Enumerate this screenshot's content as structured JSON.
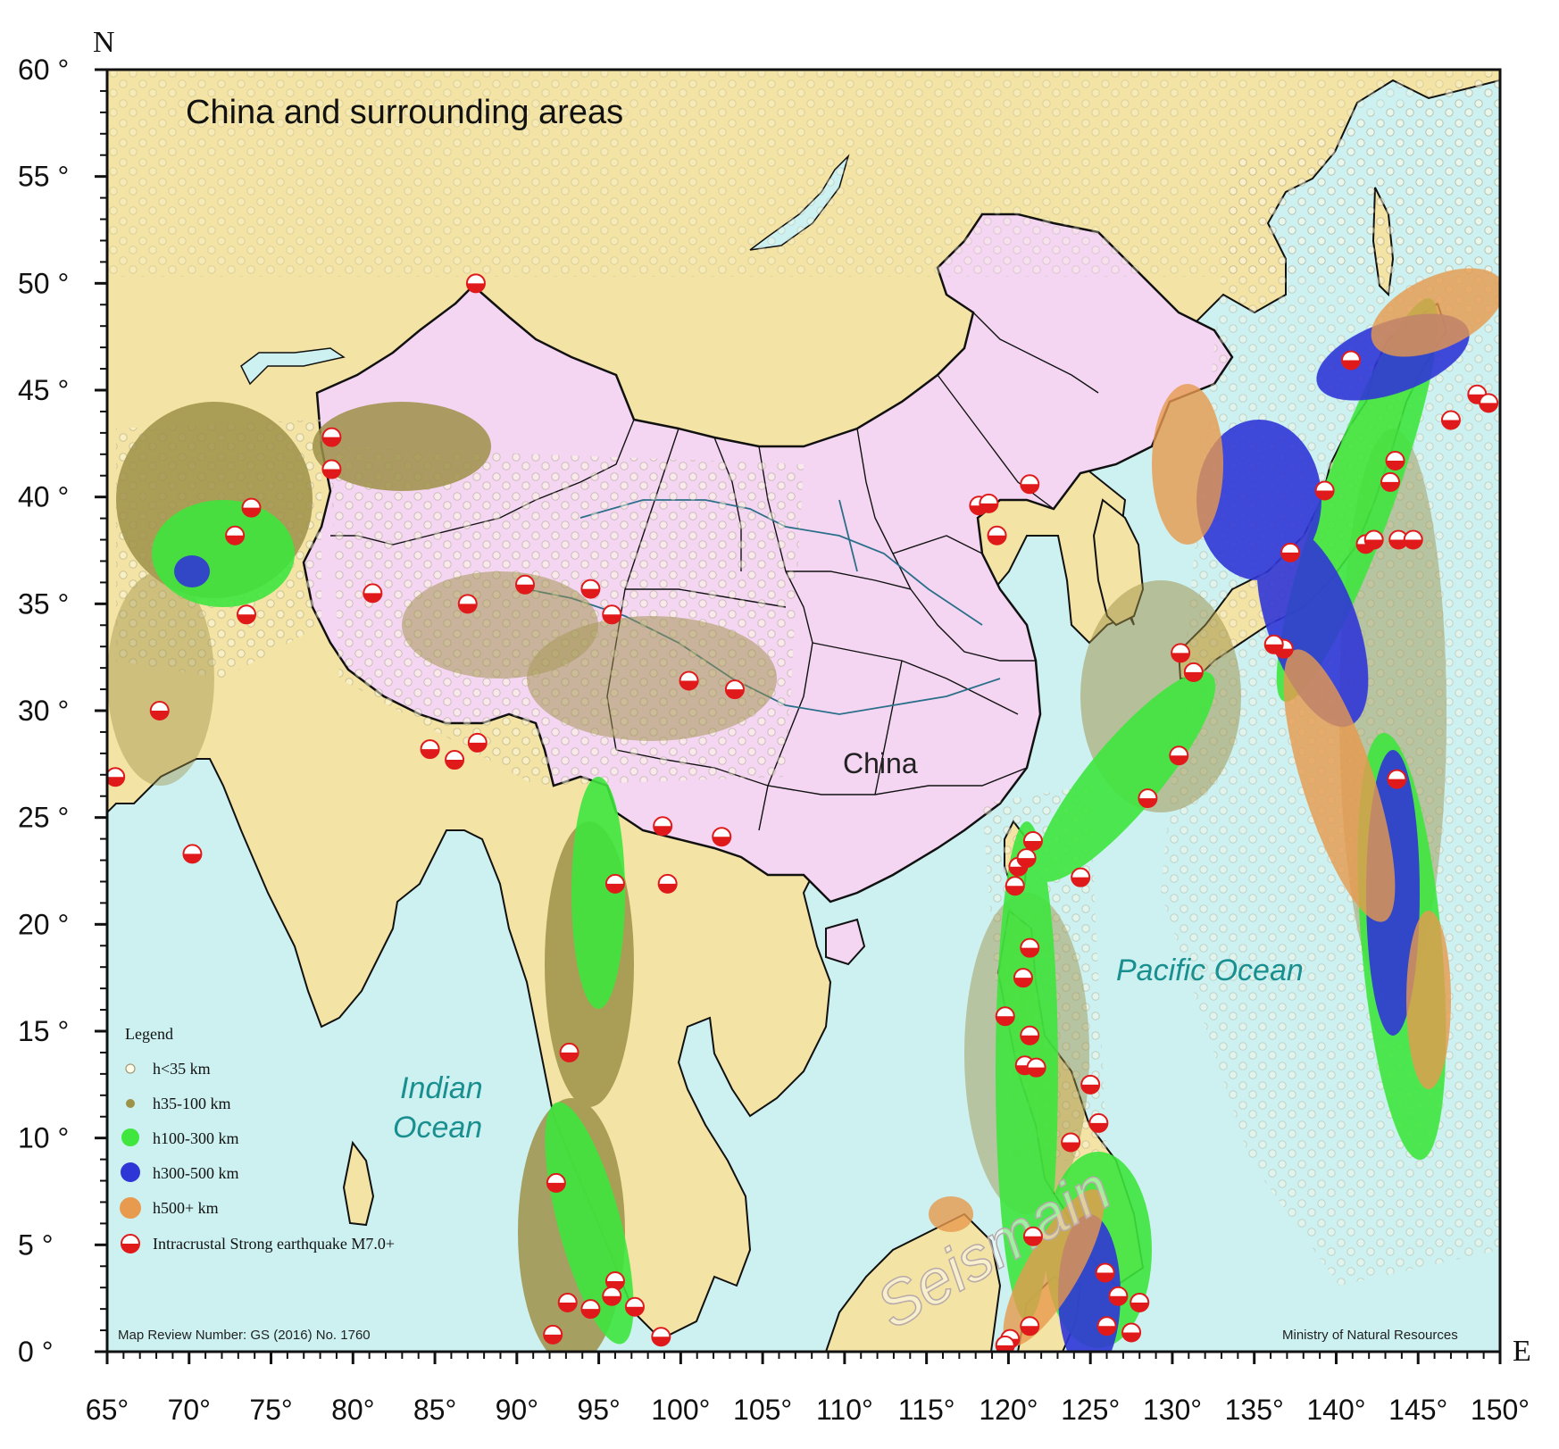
{
  "title": "China and surrounding areas",
  "compass": {
    "north": "N",
    "east": "E"
  },
  "axes": {
    "lat_labels": [
      "60 °",
      "55 °",
      "50 °",
      "45 °",
      "40 °",
      "35 °",
      "30 °",
      "25 °",
      "20 °",
      "15 °",
      "10 °",
      "5 °",
      "0 °"
    ],
    "lon_labels": [
      "65°",
      "70°",
      "75°",
      "80°",
      "85°",
      "90°",
      "95°",
      "100°",
      "105°",
      "110°",
      "115°",
      "120°",
      "125°",
      "130°",
      "135°",
      "140°",
      "145°",
      "150°"
    ],
    "lat_range": [
      0,
      60
    ],
    "lon_range": [
      65,
      150
    ]
  },
  "labels": {
    "china": "China",
    "pacific": "Pacific Ocean",
    "indian_line1": "Indian",
    "indian_line2": "Ocean"
  },
  "legend": {
    "heading": "Legend",
    "items": [
      {
        "label": "h<35 km",
        "color": "#fffbe6",
        "stroke": "#a09a7a"
      },
      {
        "label": "h35-100 km",
        "color": "#9e9148",
        "stroke": "#7d7236"
      },
      {
        "label": "h100-300 km",
        "color": "#3ee63e",
        "stroke": "#3ee63e"
      },
      {
        "label": "h300-500 km",
        "color": "#2f36d6",
        "stroke": "#2f36d6"
      },
      {
        "label": "h500+ km",
        "color": "#e89a4e",
        "stroke": "#e89a4e"
      },
      {
        "label": "Intracrustal Strong earthquake M7.0+",
        "color": "#e01a1a",
        "stroke": "#e01a1a"
      }
    ]
  },
  "footer_left": "Map Review Number: GS (2016) No. 1760",
  "footer_right": "Ministry of Natural Resources",
  "watermark": "Seismain",
  "colors": {
    "land": "#f3e3a4",
    "china": "#f4d6f2",
    "ocean": "#cdf1f1",
    "shallow": "#fffbe6",
    "mid": "#9e9148",
    "deep1": "#3ee63e",
    "deep2": "#2f36d6",
    "deep3": "#e89a4e",
    "strong": "#e01a1a"
  },
  "strong_quakes": [
    [
      87.5,
      50.0
    ],
    [
      78.7,
      42.8
    ],
    [
      78.7,
      41.3
    ],
    [
      73.8,
      39.5
    ],
    [
      72.8,
      38.2
    ],
    [
      73.5,
      34.5
    ],
    [
      81.2,
      35.5
    ],
    [
      87.0,
      35.0
    ],
    [
      90.5,
      35.9
    ],
    [
      94.5,
      35.7
    ],
    [
      95.8,
      34.5
    ],
    [
      100.5,
      31.4
    ],
    [
      103.3,
      31.0
    ],
    [
      68.2,
      30.0
    ],
    [
      65.5,
      26.9
    ],
    [
      70.2,
      23.3
    ],
    [
      84.7,
      28.2
    ],
    [
      86.2,
      27.7
    ],
    [
      87.6,
      28.5
    ],
    [
      98.9,
      24.6
    ],
    [
      102.5,
      24.1
    ],
    [
      96.0,
      21.9
    ],
    [
      99.2,
      21.9
    ],
    [
      118.2,
      39.6
    ],
    [
      118.8,
      39.7
    ],
    [
      119.3,
      38.2
    ],
    [
      121.3,
      40.6
    ],
    [
      130.5,
      32.7
    ],
    [
      131.3,
      31.8
    ],
    [
      130.4,
      27.9
    ],
    [
      128.5,
      25.9
    ],
    [
      124.4,
      22.2
    ],
    [
      120.6,
      22.7
    ],
    [
      121.1,
      23.1
    ],
    [
      121.5,
      23.9
    ],
    [
      120.4,
      21.8
    ],
    [
      121.3,
      18.9
    ],
    [
      120.9,
      17.5
    ],
    [
      119.8,
      15.7
    ],
    [
      121.3,
      14.8
    ],
    [
      121.0,
      13.4
    ],
    [
      121.7,
      13.3
    ],
    [
      125.0,
      12.5
    ],
    [
      125.5,
      10.7
    ],
    [
      123.8,
      9.8
    ],
    [
      121.5,
      5.4
    ],
    [
      125.9,
      3.7
    ],
    [
      126.7,
      2.6
    ],
    [
      128.0,
      2.3
    ],
    [
      126.0,
      1.2
    ],
    [
      127.5,
      0.9
    ],
    [
      121.3,
      1.2
    ],
    [
      120.1,
      0.6
    ],
    [
      119.8,
      0.3
    ],
    [
      98.8,
      0.7
    ],
    [
      92.2,
      0.8
    ],
    [
      92.4,
      7.9
    ],
    [
      93.2,
      14.0
    ],
    [
      93.1,
      2.3
    ],
    [
      94.5,
      2.0
    ],
    [
      96.0,
      3.3
    ],
    [
      95.8,
      2.6
    ],
    [
      97.2,
      2.1
    ],
    [
      136.8,
      32.9
    ],
    [
      136.2,
      33.1
    ],
    [
      137.2,
      37.4
    ],
    [
      139.3,
      40.3
    ],
    [
      140.9,
      46.4
    ],
    [
      143.3,
      40.7
    ],
    [
      143.6,
      41.7
    ],
    [
      141.8,
      37.8
    ],
    [
      142.3,
      38.0
    ],
    [
      143.8,
      38.0
    ],
    [
      144.7,
      38.0
    ],
    [
      147.0,
      43.6
    ],
    [
      148.6,
      44.8
    ],
    [
      149.3,
      44.4
    ],
    [
      143.7,
      26.8
    ]
  ]
}
